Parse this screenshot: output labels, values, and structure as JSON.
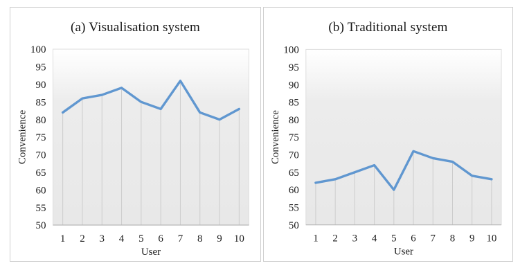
{
  "figure": {
    "background": "#ffffff",
    "panel_border_color": "#cfcfcf",
    "line_color": "#6097d0",
    "drop_line_color": "#cccccc",
    "axis_line_color": "#b8b8b8",
    "plot_border_color": "#dedede",
    "plot_fill_top": "#ffffff",
    "plot_fill_bottom": "#e8e8e8",
    "text_color": "#1a1a1a"
  },
  "chart_data": [
    {
      "type": "line",
      "title": "(a) Visualisation system",
      "xlabel": "User",
      "ylabel": "Convenience",
      "categories": [
        "1",
        "2",
        "3",
        "4",
        "5",
        "6",
        "7",
        "8",
        "9",
        "10"
      ],
      "values": [
        82,
        86,
        87,
        89,
        85,
        83,
        91,
        82,
        80,
        83
      ],
      "ylim": [
        50,
        100
      ],
      "ytick_step": 5,
      "grid": "vertical-drop-lines",
      "legend": "none"
    },
    {
      "type": "line",
      "title": "(b) Traditional system",
      "xlabel": "User",
      "ylabel": "Convenience",
      "categories": [
        "1",
        "2",
        "3",
        "4",
        "5",
        "6",
        "7",
        "8",
        "9",
        "10"
      ],
      "values": [
        62,
        63,
        65,
        67,
        60,
        71,
        69,
        68,
        64,
        63
      ],
      "ylim": [
        50,
        100
      ],
      "ytick_step": 5,
      "grid": "vertical-drop-lines",
      "legend": "none"
    }
  ]
}
